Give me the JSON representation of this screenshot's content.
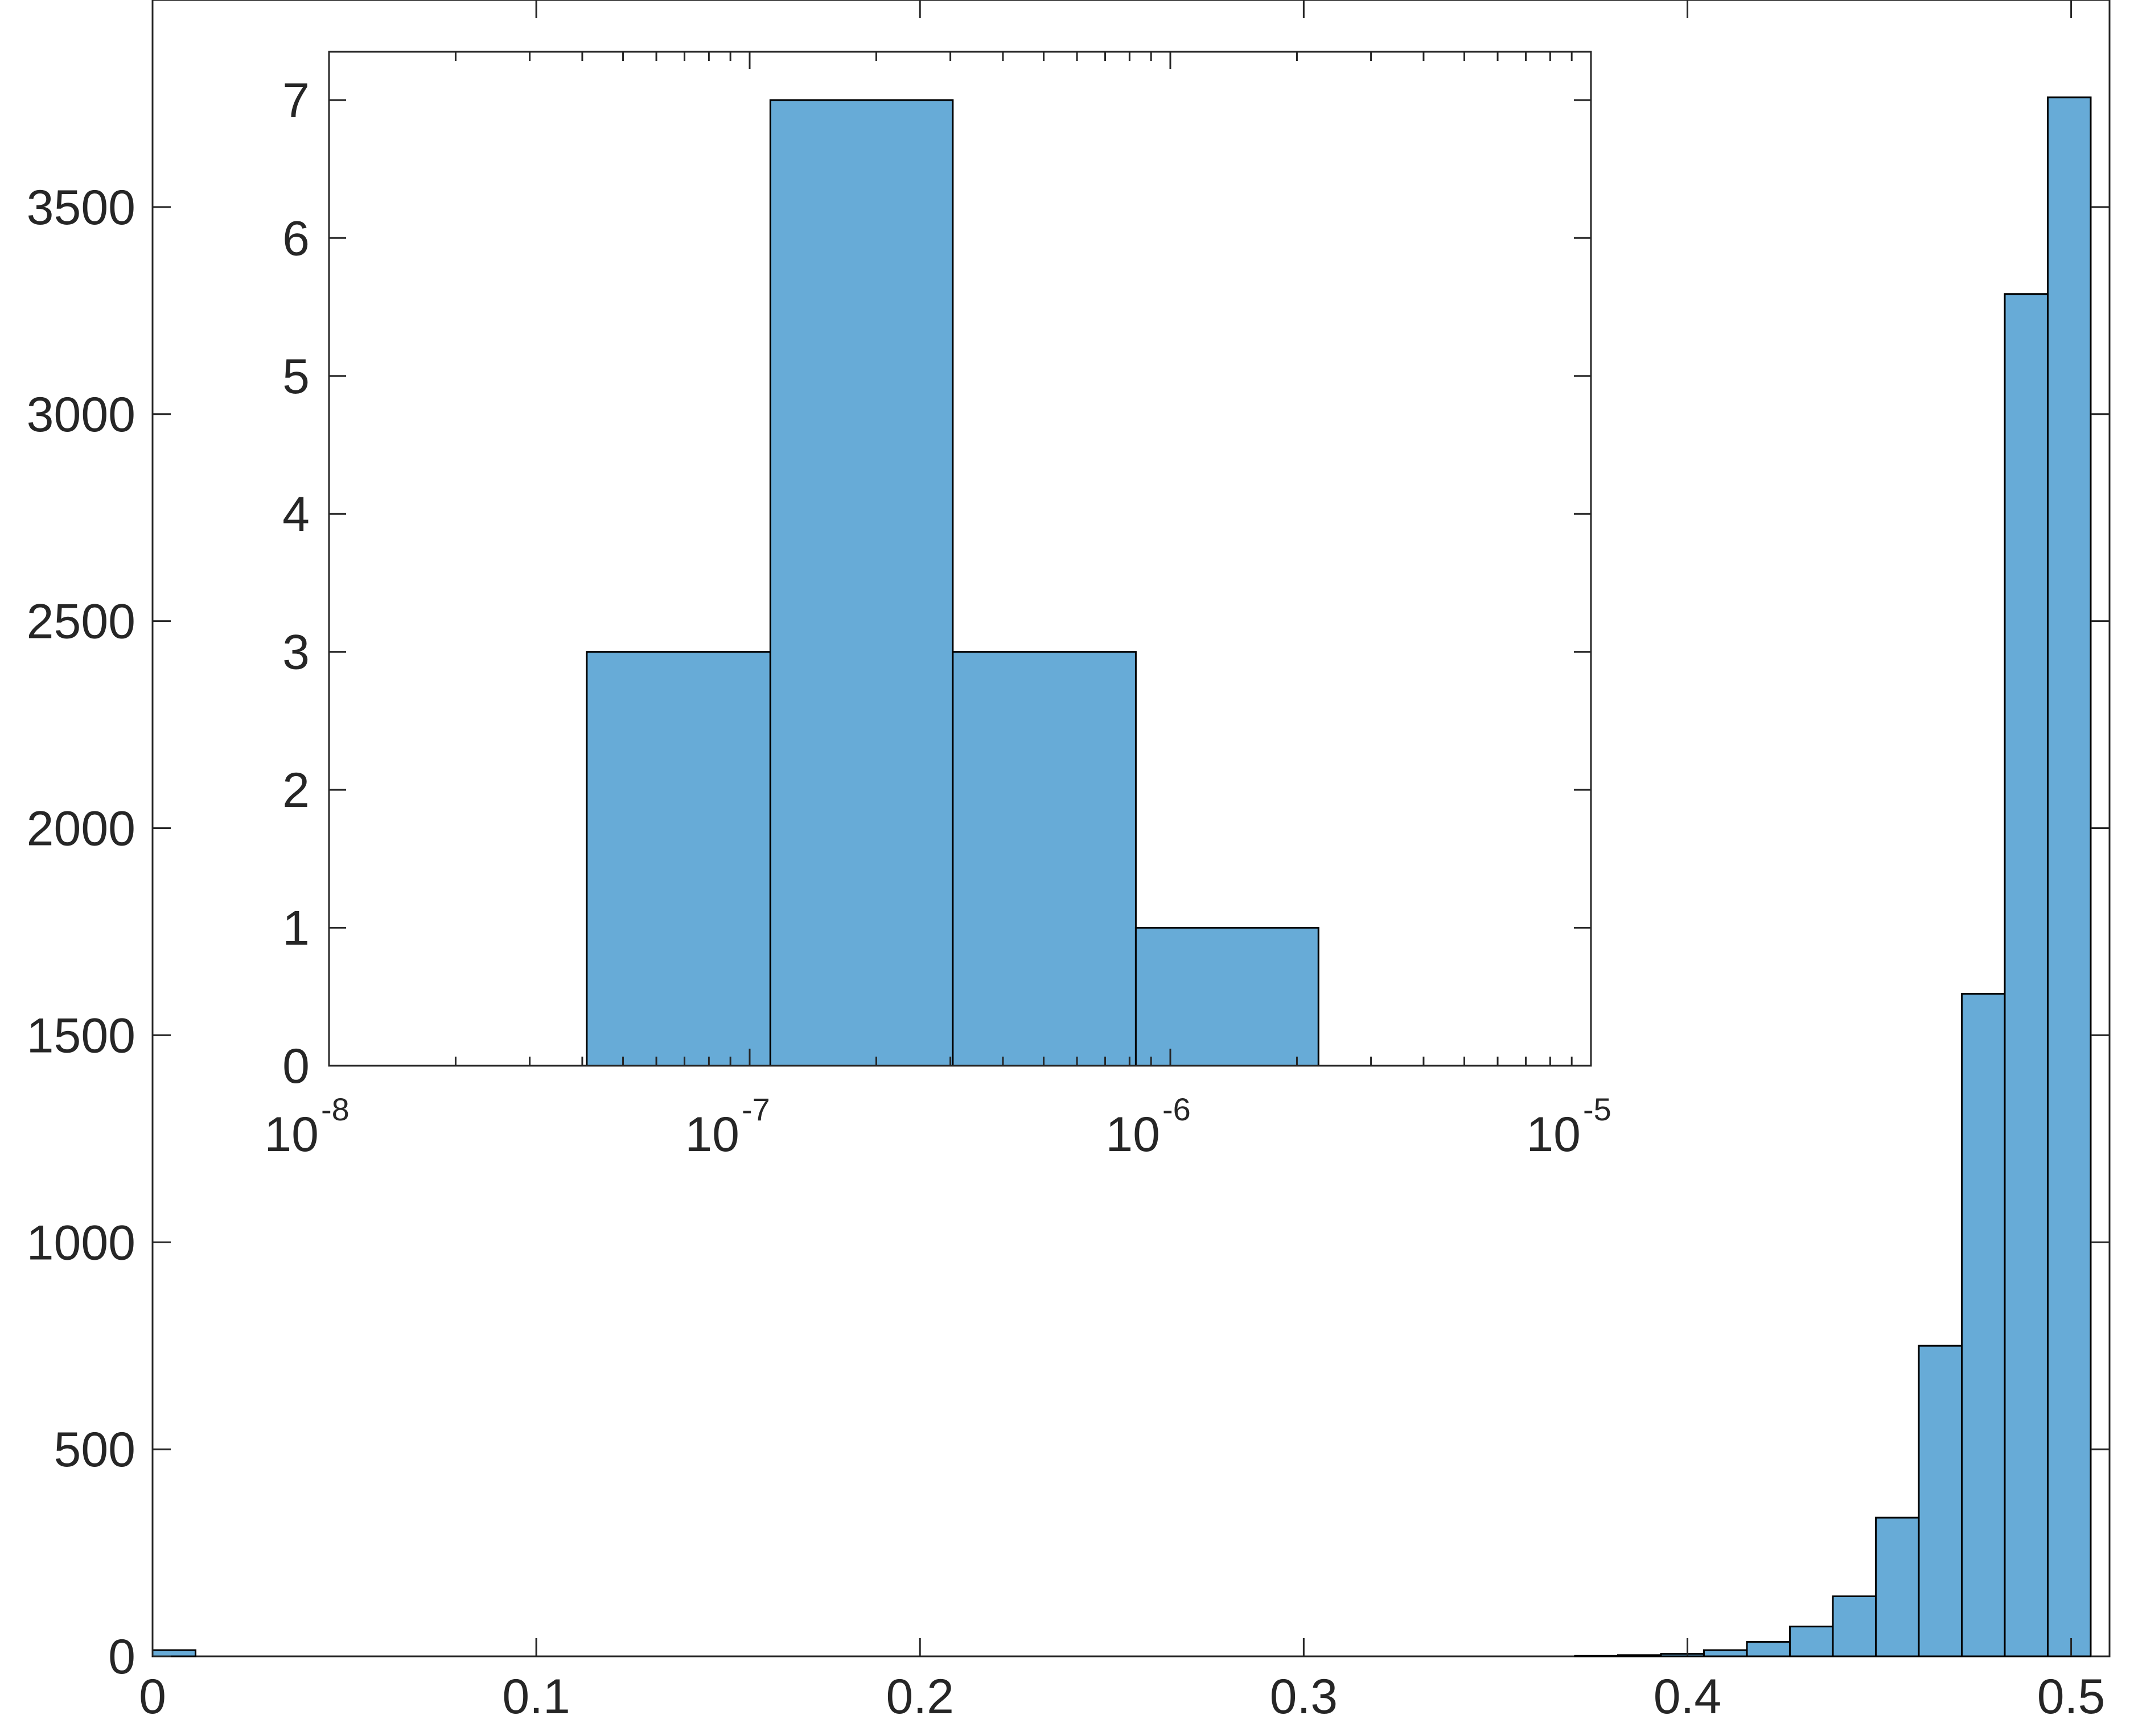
{
  "chart_data": [
    {
      "id": "main",
      "type": "bar",
      "style": {
        "bar_color": "#67abd7",
        "edge_color": "#000000",
        "axis_color": "#262626"
      },
      "xlim": [
        0,
        0.51
      ],
      "ylim": [
        0,
        4000
      ],
      "x_ticks": [
        {
          "value": 0,
          "label": "0"
        },
        {
          "value": 0.1,
          "label": "0.1"
        },
        {
          "value": 0.2,
          "label": "0.2"
        },
        {
          "value": 0.3,
          "label": "0.3"
        },
        {
          "value": 0.4,
          "label": "0.4"
        },
        {
          "value": 0.5,
          "label": "0.5"
        }
      ],
      "y_ticks": [
        {
          "value": 0,
          "label": "0"
        },
        {
          "value": 500,
          "label": "500"
        },
        {
          "value": 1000,
          "label": "1000"
        },
        {
          "value": 1500,
          "label": "1500"
        },
        {
          "value": 2000,
          "label": "2000"
        },
        {
          "value": 2500,
          "label": "2500"
        },
        {
          "value": 3000,
          "label": "3000"
        },
        {
          "value": 3500,
          "label": "3500"
        }
      ],
      "bins": [
        {
          "x0": 0.0,
          "x1": 0.0112,
          "value": 15
        },
        {
          "x0": 0.3707,
          "x1": 0.3819,
          "value": 1
        },
        {
          "x0": 0.3819,
          "x1": 0.3931,
          "value": 3
        },
        {
          "x0": 0.3931,
          "x1": 0.4043,
          "value": 6
        },
        {
          "x0": 0.4043,
          "x1": 0.4155,
          "value": 15
        },
        {
          "x0": 0.4155,
          "x1": 0.4267,
          "value": 35
        },
        {
          "x0": 0.4267,
          "x1": 0.4379,
          "value": 72
        },
        {
          "x0": 0.4379,
          "x1": 0.4491,
          "value": 145
        },
        {
          "x0": 0.4491,
          "x1": 0.4603,
          "value": 335
        },
        {
          "x0": 0.4603,
          "x1": 0.4715,
          "value": 750
        },
        {
          "x0": 0.4715,
          "x1": 0.4827,
          "value": 1600
        },
        {
          "x0": 0.4827,
          "x1": 0.4939,
          "value": 3290
        },
        {
          "x0": 0.4939,
          "x1": 0.5051,
          "value": 3765
        }
      ]
    },
    {
      "id": "inset",
      "type": "bar",
      "x_scale": "log",
      "xlim": [
        1e-08,
        1e-05
      ],
      "ylim": [
        0,
        7.35
      ],
      "x_ticks": [
        {
          "value": 1e-08,
          "base": "10",
          "exp": "-8"
        },
        {
          "value": 1e-07,
          "base": "10",
          "exp": "-7"
        },
        {
          "value": 1e-06,
          "base": "10",
          "exp": "-6"
        },
        {
          "value": 1e-05,
          "base": "10",
          "exp": "-5"
        }
      ],
      "y_ticks": [
        {
          "value": 0,
          "label": "0"
        },
        {
          "value": 1,
          "label": "1"
        },
        {
          "value": 2,
          "label": "2"
        },
        {
          "value": 3,
          "label": "3"
        },
        {
          "value": 4,
          "label": "4"
        },
        {
          "value": 5,
          "label": "5"
        },
        {
          "value": 6,
          "label": "6"
        },
        {
          "value": 7,
          "label": "7"
        }
      ],
      "bins": [
        {
          "x0": 4.1e-08,
          "x1": 1.12e-07,
          "value": 3
        },
        {
          "x0": 1.12e-07,
          "x1": 3.04e-07,
          "value": 7
        },
        {
          "x0": 3.04e-07,
          "x1": 8.28e-07,
          "value": 3
        },
        {
          "x0": 8.28e-07,
          "x1": 2.25e-06,
          "value": 1
        }
      ]
    }
  ]
}
